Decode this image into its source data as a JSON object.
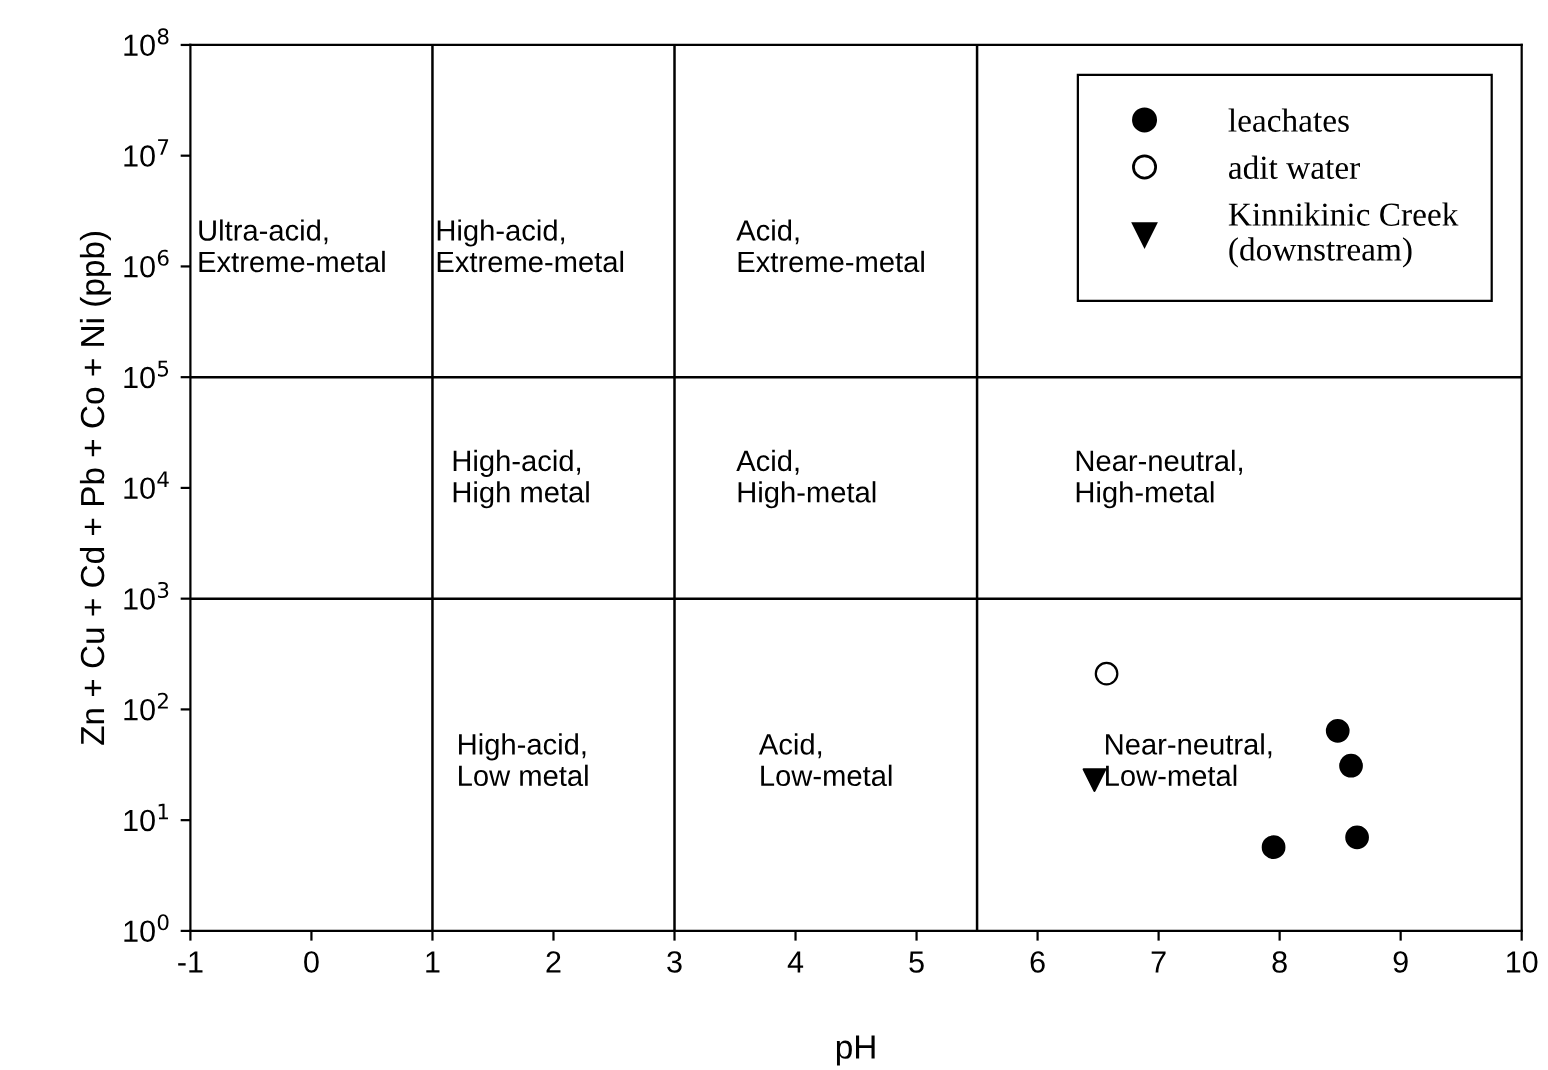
{
  "chart_data": {
    "type": "scatter",
    "xlabel": "pH",
    "ylabel": "Zn + Cu + Cd + Pb + Co + Ni (ppb)",
    "log": "y",
    "xlim": [
      -1,
      10
    ],
    "xticks": [
      -1,
      0,
      1,
      2,
      3,
      4,
      5,
      6,
      7,
      8,
      9,
      10
    ],
    "ylim": [
      1,
      100000000
    ],
    "yticks": [
      {
        "value": 1,
        "label": "10$^{0}$"
      },
      {
        "value": 10,
        "label": "10$^{1}$"
      },
      {
        "value": 100,
        "label": "10$^{2}$"
      },
      {
        "value": 1000,
        "label": "10$^{3}$"
      },
      {
        "value": 10000,
        "label": "10$^{4}$"
      },
      {
        "value": 100000,
        "label": "10$^{5}$"
      },
      {
        "value": 1000000,
        "label": "10$^{6}$"
      },
      {
        "value": 10000000,
        "label": "10$^{7}$"
      },
      {
        "value": 100000000,
        "label": "10$^{8}$"
      }
    ],
    "grid": false,
    "legend": "top right",
    "series": [
      {
        "name": "leachates",
        "color": "#000000",
        "marker": "circle",
        "x": [
          7.95,
          8.48,
          8.59,
          8.64
        ],
        "values": [
          5.7,
          64,
          31,
          7
        ]
      },
      {
        "name": "adit water",
        "color": "#ffffff",
        "marker": "circle",
        "x": [
          6.57
        ],
        "values": [
          210
        ]
      },
      {
        "name": "Kinnikinic Creek\n(downstream)",
        "color": "#000000",
        "marker": "triangle",
        "x": [
          6.47
        ],
        "values": [
          23
        ]
      }
    ],
    "ref_lines": [
      {
        "axis": "x",
        "value": 1,
        "color": "#000000"
      },
      {
        "axis": "x",
        "value": 3,
        "color": "#000000"
      },
      {
        "axis": "x",
        "value": 5.5,
        "color": "#000000"
      },
      {
        "axis": "y",
        "value": 1000,
        "color": "#000000"
      },
      {
        "axis": "y",
        "value": 100000,
        "color": "#000000"
      }
    ],
    "annotations": [
      "Ultra-acid,\nExtreme-metal",
      "High-acid,\nExtreme-metal",
      "Acid,\nExtreme-metal",
      "High-acid,\nHigh metal",
      "Acid,\nHigh-metal",
      "Near-neutral,\nHigh-metal",
      "High-acid,\nLow metal",
      "Acid,\nLow-metal",
      "Near-neutral,\nLow-metal"
    ]
  }
}
